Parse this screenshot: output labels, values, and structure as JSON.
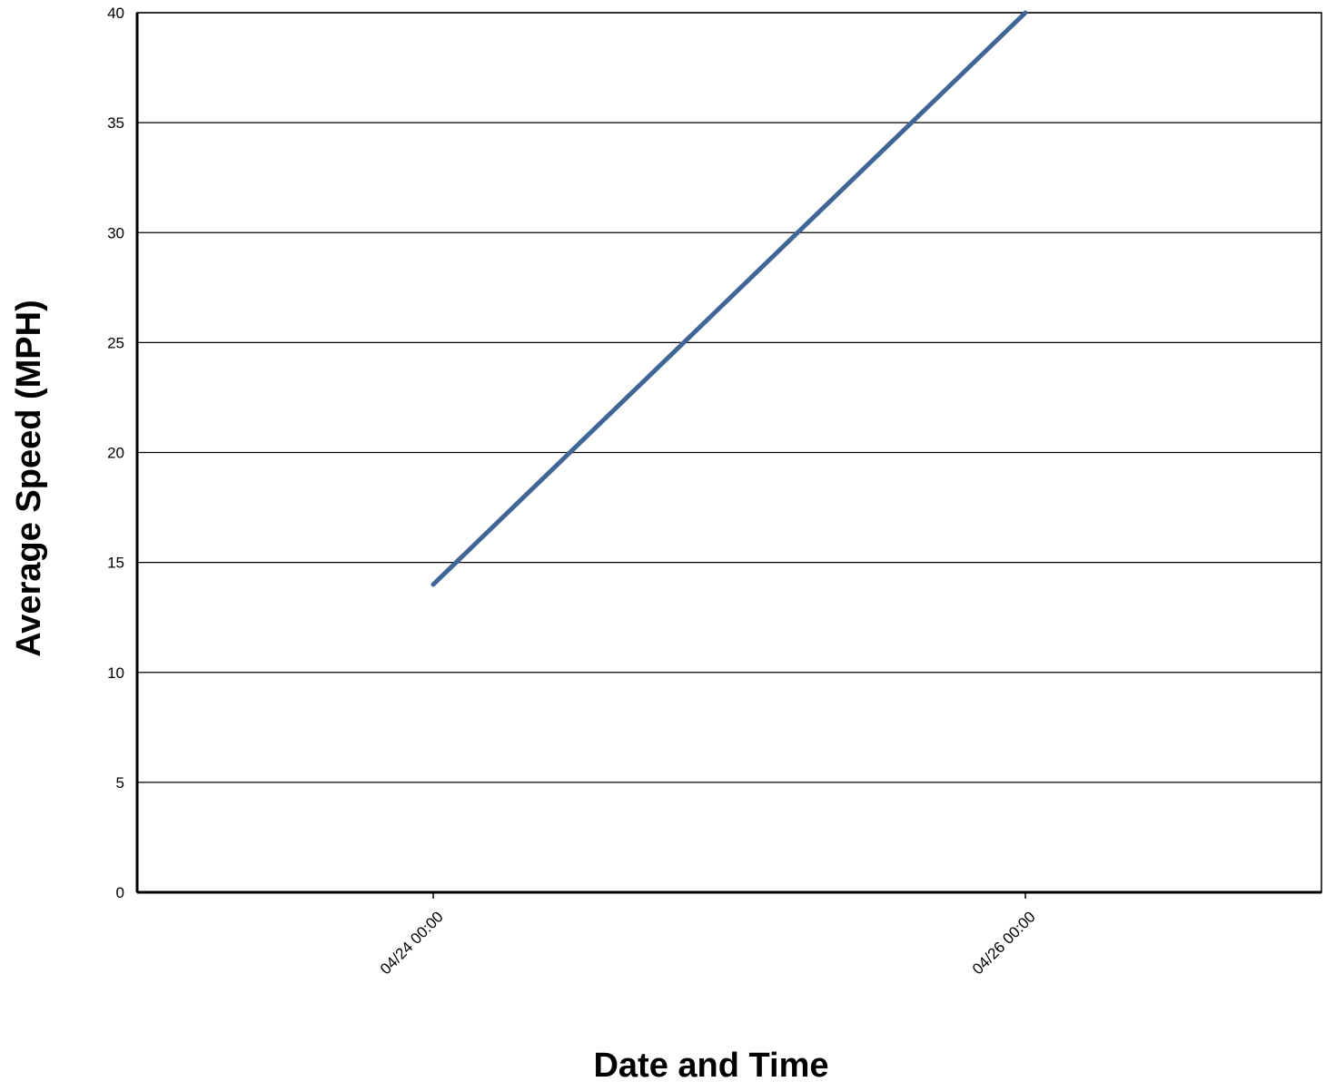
{
  "chart_data": {
    "type": "line",
    "title": "",
    "xlabel": "Date and Time",
    "ylabel": "Average Speed (MPH)",
    "ylim": [
      0,
      40
    ],
    "yticks": [
      0,
      5,
      10,
      15,
      20,
      25,
      30,
      35,
      40
    ],
    "xlim": [
      "04/23 00:00",
      "04/27 00:00"
    ],
    "xticks": [
      "04/24 00:00",
      "04/26 00:00"
    ],
    "grid": true,
    "legend": "none",
    "series": [
      {
        "color": "#3f6695",
        "points": [
          {
            "x": "04/24 00:00",
            "y": 14
          },
          {
            "x": "04/26 00:00",
            "y": 40
          }
        ]
      }
    ]
  }
}
